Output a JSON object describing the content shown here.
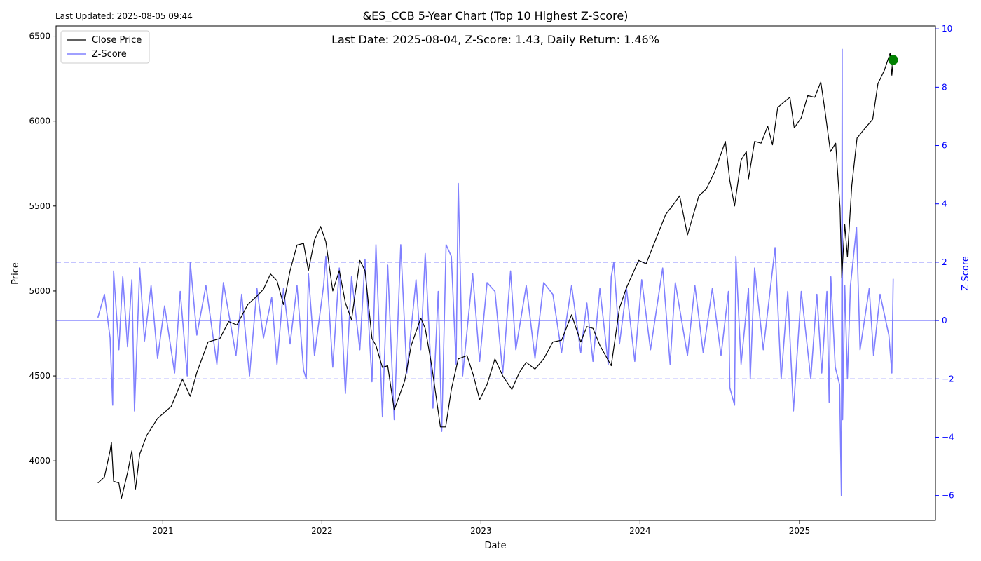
{
  "header": {
    "updated": "Last Updated: 2025-08-05 09:44"
  },
  "chart_data": {
    "type": "line",
    "title": "&ES_CCB 5-Year Chart (Top 10 Highest Z-Score)",
    "annotation": "Last Date: 2025-08-04, Z-Score: 1.43, Daily Return: 1.46%",
    "xlabel": "Date",
    "ylabel": "Price",
    "ylabel_right": "Z-Score",
    "x_ticks": [
      "2021",
      "2022",
      "2023",
      "2024",
      "2025"
    ],
    "x_range": [
      "2020-05-01",
      "2025-11-09"
    ],
    "ylim": [
      3650,
      6560
    ],
    "ylim_right": [
      -6.85,
      10.1
    ],
    "y_ticks": [
      4000,
      4500,
      5000,
      5500,
      6000,
      6500
    ],
    "y_ticks_right": [
      -6,
      -4,
      -2,
      0,
      2,
      4,
      6,
      8,
      10
    ],
    "legend": {
      "placement": "top-left",
      "entries": [
        "Close Price",
        "Z-Score"
      ]
    },
    "grid": false,
    "reference_lines": [
      {
        "axis": "right",
        "value": 2,
        "style": "dashed"
      },
      {
        "axis": "right",
        "value": -2,
        "style": "dashed"
      },
      {
        "axis": "right",
        "value": 0,
        "style": "solid"
      }
    ],
    "highlight_point": {
      "date": "2025-08-04",
      "value": 6360,
      "color": "#008000"
    },
    "colors": {
      "price": "#000000",
      "zscore": "#8080ff",
      "axis_right": "#0000ff"
    },
    "series": [
      {
        "name": "Close Price",
        "axis": "left",
        "points": [
          [
            "2020-08-05",
            3870
          ],
          [
            "2020-08-20",
            3905
          ],
          [
            "2020-09-02",
            4060
          ],
          [
            "2020-09-05",
            4110
          ],
          [
            "2020-09-10",
            3880
          ],
          [
            "2020-09-22",
            3870
          ],
          [
            "2020-09-28",
            3780
          ],
          [
            "2020-10-12",
            3930
          ],
          [
            "2020-10-22",
            4060
          ],
          [
            "2020-10-30",
            3830
          ],
          [
            "2020-11-09",
            4040
          ],
          [
            "2020-11-25",
            4150
          ],
          [
            "2020-12-20",
            4250
          ],
          [
            "2021-01-20",
            4320
          ],
          [
            "2021-02-15",
            4480
          ],
          [
            "2021-03-05",
            4380
          ],
          [
            "2021-03-20",
            4520
          ],
          [
            "2021-04-15",
            4700
          ],
          [
            "2021-05-12",
            4720
          ],
          [
            "2021-06-01",
            4820
          ],
          [
            "2021-06-20",
            4800
          ],
          [
            "2021-07-15",
            4920
          ],
          [
            "2021-08-05",
            4970
          ],
          [
            "2021-08-20",
            5010
          ],
          [
            "2021-09-05",
            5100
          ],
          [
            "2021-09-20",
            5060
          ],
          [
            "2021-10-05",
            4920
          ],
          [
            "2021-10-20",
            5120
          ],
          [
            "2021-11-05",
            5270
          ],
          [
            "2021-11-20",
            5280
          ],
          [
            "2021-12-01",
            5120
          ],
          [
            "2021-12-15",
            5300
          ],
          [
            "2021-12-29",
            5380
          ],
          [
            "2022-01-10",
            5290
          ],
          [
            "2022-01-26",
            5000
          ],
          [
            "2022-02-10",
            5120
          ],
          [
            "2022-02-24",
            4930
          ],
          [
            "2022-03-10",
            4830
          ],
          [
            "2022-03-29",
            5180
          ],
          [
            "2022-04-10",
            5120
          ],
          [
            "2022-04-26",
            4720
          ],
          [
            "2022-05-05",
            4680
          ],
          [
            "2022-05-20",
            4550
          ],
          [
            "2022-06-01",
            4560
          ],
          [
            "2022-06-16",
            4300
          ],
          [
            "2022-07-10",
            4470
          ],
          [
            "2022-07-25",
            4680
          ],
          [
            "2022-08-16",
            4840
          ],
          [
            "2022-08-26",
            4780
          ],
          [
            "2022-09-10",
            4560
          ],
          [
            "2022-09-30",
            4200
          ],
          [
            "2022-10-12",
            4200
          ],
          [
            "2022-10-25",
            4420
          ],
          [
            "2022-11-10",
            4600
          ],
          [
            "2022-11-30",
            4620
          ],
          [
            "2022-12-15",
            4500
          ],
          [
            "2022-12-29",
            4360
          ],
          [
            "2023-01-15",
            4450
          ],
          [
            "2023-02-02",
            4600
          ],
          [
            "2023-02-20",
            4500
          ],
          [
            "2023-03-13",
            4420
          ],
          [
            "2023-03-30",
            4520
          ],
          [
            "2023-04-15",
            4580
          ],
          [
            "2023-05-05",
            4540
          ],
          [
            "2023-05-25",
            4600
          ],
          [
            "2023-06-15",
            4700
          ],
          [
            "2023-07-05",
            4710
          ],
          [
            "2023-07-28",
            4860
          ],
          [
            "2023-08-18",
            4700
          ],
          [
            "2023-09-01",
            4790
          ],
          [
            "2023-09-15",
            4780
          ],
          [
            "2023-10-01",
            4680
          ],
          [
            "2023-10-27",
            4560
          ],
          [
            "2023-11-15",
            4900
          ],
          [
            "2023-12-01",
            5020
          ],
          [
            "2023-12-29",
            5180
          ],
          [
            "2024-01-15",
            5160
          ],
          [
            "2024-02-01",
            5270
          ],
          [
            "2024-02-29",
            5450
          ],
          [
            "2024-03-15",
            5500
          ],
          [
            "2024-04-01",
            5560
          ],
          [
            "2024-04-19",
            5330
          ],
          [
            "2024-05-15",
            5560
          ],
          [
            "2024-06-01",
            5600
          ],
          [
            "2024-06-20",
            5700
          ],
          [
            "2024-07-15",
            5880
          ],
          [
            "2024-07-25",
            5650
          ],
          [
            "2024-08-05",
            5500
          ],
          [
            "2024-08-20",
            5770
          ],
          [
            "2024-09-01",
            5820
          ],
          [
            "2024-09-06",
            5660
          ],
          [
            "2024-09-20",
            5880
          ],
          [
            "2024-10-05",
            5870
          ],
          [
            "2024-10-20",
            5970
          ],
          [
            "2024-10-31",
            5860
          ],
          [
            "2024-11-12",
            6080
          ],
          [
            "2024-11-30",
            6120
          ],
          [
            "2024-12-10",
            6140
          ],
          [
            "2024-12-20",
            5960
          ],
          [
            "2025-01-05",
            6020
          ],
          [
            "2025-01-20",
            6150
          ],
          [
            "2025-02-05",
            6140
          ],
          [
            "2025-02-19",
            6230
          ],
          [
            "2025-03-01",
            6050
          ],
          [
            "2025-03-13",
            5820
          ],
          [
            "2025-03-25",
            5870
          ],
          [
            "2025-04-04",
            5490
          ],
          [
            "2025-04-08",
            5080
          ],
          [
            "2025-04-15",
            5390
          ],
          [
            "2025-04-21",
            5200
          ],
          [
            "2025-05-01",
            5620
          ],
          [
            "2025-05-13",
            5900
          ],
          [
            "2025-06-01",
            5960
          ],
          [
            "2025-06-18",
            6010
          ],
          [
            "2025-06-30",
            6220
          ],
          [
            "2025-07-15",
            6300
          ],
          [
            "2025-07-28",
            6400
          ],
          [
            "2025-08-01",
            6270
          ],
          [
            "2025-08-04",
            6360
          ]
        ]
      },
      {
        "name": "Z-Score",
        "axis": "right",
        "points": [
          [
            "2020-08-05",
            0.1
          ],
          [
            "2020-08-20",
            0.9
          ],
          [
            "2020-09-02",
            -0.6
          ],
          [
            "2020-09-08",
            -2.9
          ],
          [
            "2020-09-10",
            1.7
          ],
          [
            "2020-09-22",
            -1.0
          ],
          [
            "2020-10-01",
            1.5
          ],
          [
            "2020-10-12",
            -0.9
          ],
          [
            "2020-10-22",
            1.4
          ],
          [
            "2020-10-28",
            -3.1
          ],
          [
            "2020-11-09",
            1.8
          ],
          [
            "2020-11-20",
            -0.7
          ],
          [
            "2020-12-05",
            1.2
          ],
          [
            "2020-12-20",
            -1.3
          ],
          [
            "2021-01-05",
            0.5
          ],
          [
            "2021-01-28",
            -1.8
          ],
          [
            "2021-02-10",
            1.0
          ],
          [
            "2021-02-26",
            -1.9
          ],
          [
            "2021-03-05",
            2.0
          ],
          [
            "2021-03-20",
            -0.5
          ],
          [
            "2021-04-10",
            1.2
          ],
          [
            "2021-05-05",
            -1.5
          ],
          [
            "2021-05-20",
            1.3
          ],
          [
            "2021-06-18",
            -1.2
          ],
          [
            "2021-07-01",
            0.9
          ],
          [
            "2021-07-19",
            -1.9
          ],
          [
            "2021-08-05",
            1.1
          ],
          [
            "2021-08-20",
            -0.6
          ],
          [
            "2021-09-08",
            0.8
          ],
          [
            "2021-09-20",
            -1.5
          ],
          [
            "2021-10-05",
            1.1
          ],
          [
            "2021-10-20",
            -0.8
          ],
          [
            "2021-11-05",
            1.2
          ],
          [
            "2021-11-20",
            -1.7
          ],
          [
            "2021-11-26",
            -2.0
          ],
          [
            "2021-12-01",
            1.6
          ],
          [
            "2021-12-15",
            -1.2
          ],
          [
            "2022-01-05",
            1.2
          ],
          [
            "2022-01-10",
            2.2
          ],
          [
            "2022-01-26",
            -1.6
          ],
          [
            "2022-02-10",
            1.8
          ],
          [
            "2022-02-24",
            -2.5
          ],
          [
            "2022-03-10",
            1.5
          ],
          [
            "2022-03-29",
            -1.0
          ],
          [
            "2022-04-10",
            2.1
          ],
          [
            "2022-04-26",
            -2.1
          ],
          [
            "2022-05-05",
            2.6
          ],
          [
            "2022-05-20",
            -3.3
          ],
          [
            "2022-06-01",
            1.9
          ],
          [
            "2022-06-16",
            -3.4
          ],
          [
            "2022-07-01",
            2.6
          ],
          [
            "2022-07-15",
            -1.8
          ],
          [
            "2022-08-05",
            1.4
          ],
          [
            "2022-08-16",
            -1.0
          ],
          [
            "2022-08-26",
            2.3
          ],
          [
            "2022-09-13",
            -3.0
          ],
          [
            "2022-09-25",
            1.0
          ],
          [
            "2022-10-03",
            -3.8
          ],
          [
            "2022-10-13",
            2.6
          ],
          [
            "2022-10-25",
            2.2
          ],
          [
            "2022-11-05",
            -1.5
          ],
          [
            "2022-11-10",
            4.7
          ],
          [
            "2022-11-20",
            -1.9
          ],
          [
            "2022-12-13",
            1.6
          ],
          [
            "2022-12-29",
            -1.4
          ],
          [
            "2023-01-15",
            1.3
          ],
          [
            "2023-02-02",
            1.0
          ],
          [
            "2023-02-20",
            -1.8
          ],
          [
            "2023-03-10",
            1.7
          ],
          [
            "2023-03-22",
            -1.0
          ],
          [
            "2023-04-15",
            1.2
          ],
          [
            "2023-05-05",
            -1.3
          ],
          [
            "2023-05-25",
            1.3
          ],
          [
            "2023-06-15",
            0.9
          ],
          [
            "2023-07-05",
            -1.1
          ],
          [
            "2023-07-28",
            1.2
          ],
          [
            "2023-08-18",
            -1.1
          ],
          [
            "2023-09-01",
            0.6
          ],
          [
            "2023-09-15",
            -1.4
          ],
          [
            "2023-10-01",
            1.1
          ],
          [
            "2023-10-20",
            -1.5
          ],
          [
            "2023-10-27",
            1.5
          ],
          [
            "2023-11-02",
            2.0
          ],
          [
            "2023-11-15",
            -0.8
          ],
          [
            "2023-12-01",
            1.1
          ],
          [
            "2023-12-20",
            -1.4
          ],
          [
            "2024-01-05",
            1.4
          ],
          [
            "2024-01-25",
            -1.0
          ],
          [
            "2024-02-22",
            1.8
          ],
          [
            "2024-03-10",
            -1.5
          ],
          [
            "2024-03-22",
            1.3
          ],
          [
            "2024-04-19",
            -1.2
          ],
          [
            "2024-05-06",
            1.2
          ],
          [
            "2024-05-25",
            -1.1
          ],
          [
            "2024-06-15",
            1.1
          ],
          [
            "2024-07-05",
            -1.2
          ],
          [
            "2024-07-22",
            1.0
          ],
          [
            "2024-07-25",
            -2.3
          ],
          [
            "2024-08-05",
            -2.9
          ],
          [
            "2024-08-08",
            2.2
          ],
          [
            "2024-08-20",
            -1.5
          ],
          [
            "2024-09-06",
            1.1
          ],
          [
            "2024-09-10",
            -2.0
          ],
          [
            "2024-09-20",
            1.8
          ],
          [
            "2024-10-10",
            -1.0
          ],
          [
            "2024-11-06",
            2.5
          ],
          [
            "2024-11-20",
            -2.0
          ],
          [
            "2024-12-05",
            1.0
          ],
          [
            "2024-12-18",
            -3.1
          ],
          [
            "2025-01-05",
            1.0
          ],
          [
            "2025-01-27",
            -2.0
          ],
          [
            "2025-02-10",
            0.9
          ],
          [
            "2025-02-21",
            -1.8
          ],
          [
            "2025-03-05",
            1.0
          ],
          [
            "2025-03-10",
            -2.8
          ],
          [
            "2025-03-14",
            1.5
          ],
          [
            "2025-03-24",
            -1.6
          ],
          [
            "2025-04-03",
            -2.2
          ],
          [
            "2025-04-07",
            -6.0
          ],
          [
            "2025-04-09",
            9.3
          ],
          [
            "2025-04-10",
            -3.4
          ],
          [
            "2025-04-15",
            1.2
          ],
          [
            "2025-04-21",
            -2.0
          ],
          [
            "2025-04-28",
            1.2
          ],
          [
            "2025-05-12",
            3.2
          ],
          [
            "2025-05-20",
            -1.0
          ],
          [
            "2025-06-10",
            1.1
          ],
          [
            "2025-06-20",
            -1.2
          ],
          [
            "2025-07-05",
            0.9
          ],
          [
            "2025-07-25",
            -0.5
          ],
          [
            "2025-08-01",
            -1.8
          ],
          [
            "2025-08-04",
            1.43
          ]
        ]
      }
    ]
  }
}
